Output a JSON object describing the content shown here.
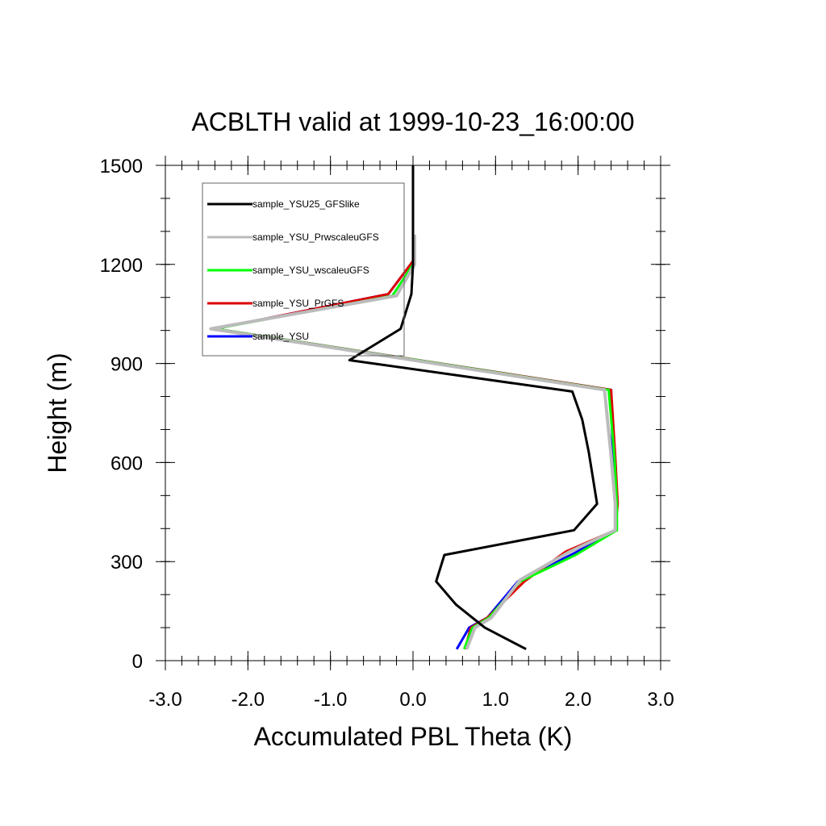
{
  "chart_data": {
    "type": "line",
    "title": "ACBLTH valid at 1999-10-23_16:00:00",
    "xlabel": "Accumulated PBL Theta (K)",
    "ylabel": "Height (m)",
    "xlim": [
      -3.0,
      3.0
    ],
    "ylim": [
      0,
      1500
    ],
    "xticks": [
      "-3.0",
      "-2.0",
      "-1.0",
      "0.0",
      "1.0",
      "2.0",
      "3.0"
    ],
    "yticks": [
      "0",
      "300",
      "600",
      "900",
      "1200",
      "1500"
    ],
    "grid": false,
    "legend_position": "top-left",
    "series": [
      {
        "name": "sample_YSU",
        "color": "#0000ff",
        "points": [
          [
            0.53,
            35
          ],
          [
            0.68,
            100
          ],
          [
            0.9,
            130
          ],
          [
            1.27,
            240
          ],
          [
            1.95,
            325
          ],
          [
            2.45,
            395
          ],
          [
            2.45,
            475
          ],
          [
            2.42,
            620
          ],
          [
            2.4,
            820
          ],
          [
            -2.4,
            1005
          ],
          [
            -0.3,
            1110
          ],
          [
            0.0,
            1210
          ]
        ]
      },
      {
        "name": "sample_YSU_PrGFS",
        "color": "#dd0000",
        "points": [
          [
            0.63,
            35
          ],
          [
            0.7,
            100
          ],
          [
            0.9,
            130
          ],
          [
            1.35,
            240
          ],
          [
            1.85,
            330
          ],
          [
            2.45,
            395
          ],
          [
            2.48,
            475
          ],
          [
            2.45,
            620
          ],
          [
            2.4,
            820
          ],
          [
            -2.4,
            1005
          ],
          [
            -0.3,
            1110
          ],
          [
            0.0,
            1210
          ]
        ]
      },
      {
        "name": "sample_YSU_wscaleuGFS",
        "color": "#00ff00",
        "points": [
          [
            0.62,
            35
          ],
          [
            0.72,
            100
          ],
          [
            0.92,
            130
          ],
          [
            1.3,
            240
          ],
          [
            1.97,
            320
          ],
          [
            2.47,
            395
          ],
          [
            2.47,
            475
          ],
          [
            2.44,
            620
          ],
          [
            2.37,
            820
          ],
          [
            -2.4,
            1005
          ],
          [
            -0.25,
            1105
          ],
          [
            0.0,
            1200
          ]
        ]
      },
      {
        "name": "sample_YSU_PrwscaleuGFS",
        "color": "#bbbbbb",
        "points": [
          [
            0.65,
            35
          ],
          [
            0.75,
            100
          ],
          [
            0.95,
            130
          ],
          [
            1.3,
            245
          ],
          [
            1.9,
            330
          ],
          [
            2.45,
            395
          ],
          [
            2.45,
            475
          ],
          [
            2.4,
            620
          ],
          [
            2.32,
            820
          ],
          [
            -2.45,
            1005
          ],
          [
            -0.2,
            1105
          ],
          [
            0.02,
            1200
          ],
          [
            0.02,
            1290
          ]
        ]
      },
      {
        "name": "sample_YSU25_GFSlike",
        "color": "#000000",
        "points": [
          [
            1.37,
            35
          ],
          [
            0.87,
            100
          ],
          [
            0.52,
            170
          ],
          [
            0.28,
            240
          ],
          [
            0.38,
            320
          ],
          [
            1.95,
            395
          ],
          [
            2.23,
            475
          ],
          [
            2.13,
            630
          ],
          [
            2.05,
            730
          ],
          [
            1.93,
            815
          ],
          [
            -0.77,
            910
          ],
          [
            -0.15,
            1005
          ],
          [
            -0.02,
            1110
          ],
          [
            0.0,
            1200
          ],
          [
            0.0,
            1300
          ],
          [
            0.0,
            1500
          ]
        ]
      }
    ],
    "legend_order": [
      "sample_YSU25_GFSlike",
      "sample_YSU_PrwscaleuGFS",
      "sample_YSU_wscaleuGFS",
      "sample_YSU_PrGFS",
      "sample_YSU"
    ]
  }
}
